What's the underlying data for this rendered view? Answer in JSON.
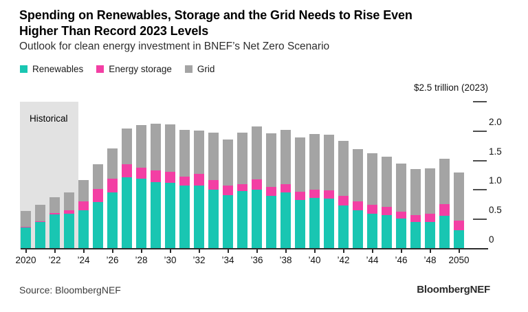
{
  "header": {
    "title_line1": "Spending on Renewables, Storage and the Grid Needs to Rise Even",
    "title_line2": "Higher Than Record 2023 Levels",
    "subtitle": "Outlook for clean energy investment in BNEF’s Net Zero Scenario"
  },
  "legend": [
    {
      "label": "Renewables",
      "color": "#19C6B2"
    },
    {
      "label": "Energy storage",
      "color": "#F33FA4"
    },
    {
      "label": "Grid",
      "color": "#A4A4A4"
    }
  ],
  "chart_data": {
    "type": "bar",
    "stacked": true,
    "title": "Spending on Renewables, Storage and the Grid Needs to Rise Even Higher Than Record 2023 Levels",
    "subtitle": "Outlook for clean energy investment in BNEF’s Net Zero Scenario",
    "unit_label": "$2.5 trillion (2023)",
    "categories": [
      2020,
      2021,
      2022,
      2023,
      2024,
      2025,
      2026,
      2027,
      2028,
      2029,
      2030,
      2031,
      2032,
      2033,
      2034,
      2035,
      2036,
      2037,
      2038,
      2039,
      2040,
      2041,
      2042,
      2043,
      2044,
      2045,
      2046,
      2047,
      2048,
      2049,
      2050
    ],
    "x_tick_labels": [
      "2020",
      "’22",
      "’24",
      "’26",
      "’28",
      "’30",
      "’32",
      "’34",
      "’36",
      "’38",
      "’40",
      "’42",
      "’44",
      "’46",
      "’48",
      "2050"
    ],
    "series": [
      {
        "name": "Renewables",
        "color": "#19C6B2",
        "values": [
          0.36,
          0.46,
          0.58,
          0.6,
          0.65,
          0.8,
          0.96,
          1.21,
          1.19,
          1.13,
          1.12,
          1.07,
          1.08,
          1.0,
          0.91,
          0.98,
          1.01,
          0.9,
          0.96,
          0.83,
          0.86,
          0.85,
          0.74,
          0.65,
          0.6,
          0.57,
          0.51,
          0.45,
          0.46,
          0.56,
          0.31
        ]
      },
      {
        "name": "Energy storage",
        "color": "#F33FA4",
        "values": [
          0.01,
          0.01,
          0.03,
          0.05,
          0.16,
          0.22,
          0.23,
          0.23,
          0.19,
          0.2,
          0.19,
          0.16,
          0.19,
          0.17,
          0.16,
          0.12,
          0.17,
          0.15,
          0.14,
          0.14,
          0.15,
          0.14,
          0.16,
          0.16,
          0.15,
          0.14,
          0.12,
          0.12,
          0.14,
          0.2,
          0.17
        ]
      },
      {
        "name": "Grid",
        "color": "#A4A4A4",
        "values": [
          0.27,
          0.28,
          0.27,
          0.31,
          0.36,
          0.42,
          0.51,
          0.61,
          0.72,
          0.8,
          0.8,
          0.79,
          0.74,
          0.8,
          0.79,
          0.87,
          0.9,
          0.91,
          0.92,
          0.92,
          0.94,
          0.95,
          0.94,
          0.89,
          0.87,
          0.85,
          0.82,
          0.78,
          0.77,
          0.77,
          0.82
        ]
      }
    ],
    "ylim": [
      0,
      2.5
    ],
    "y_ticks": [
      0,
      0.5,
      1.0,
      1.5,
      2.0,
      2.5
    ],
    "y_tick_labels": [
      "0",
      "0.5",
      "1.0",
      "1.5",
      "2.0"
    ],
    "grid": false,
    "legend_position": "top",
    "annotations": {
      "historical_label": "Historical",
      "historical_span": [
        2020,
        2023
      ]
    }
  },
  "colors": {
    "historical_bg": "#E2E2E2",
    "axis": "#2B2B2B"
  },
  "footer": {
    "source": "Source: BloombergNEF",
    "logo": "BloombergNEF"
  }
}
